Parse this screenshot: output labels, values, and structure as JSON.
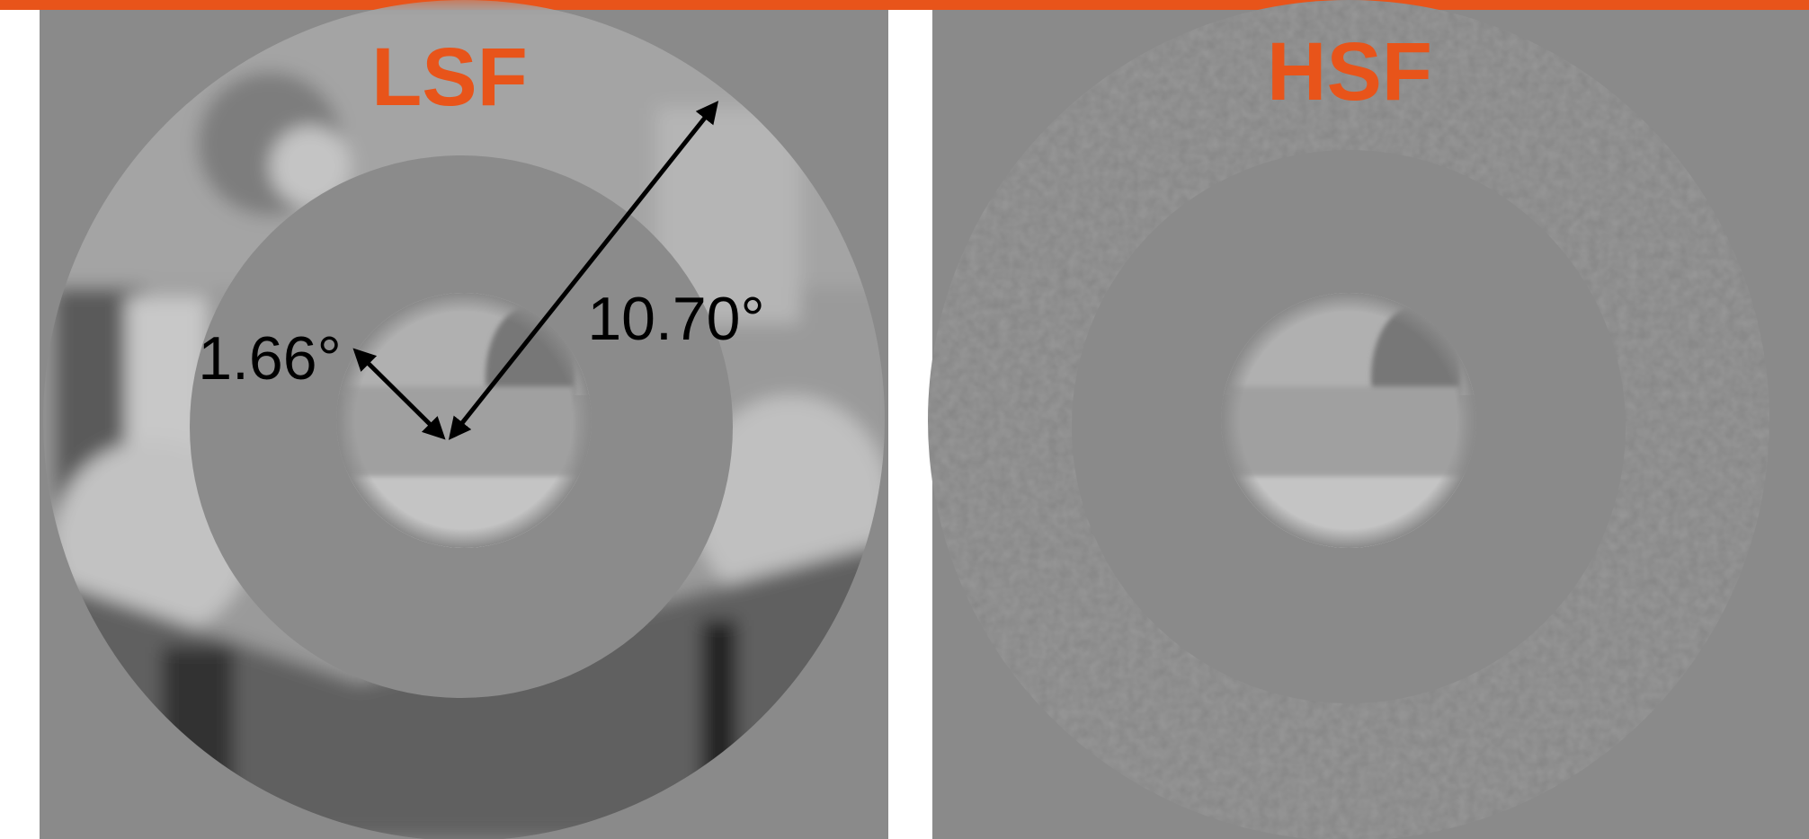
{
  "panels": [
    {
      "label": "LSF"
    },
    {
      "label": "HSF"
    }
  ],
  "annotations": {
    "inner": "1.66°",
    "outer": "10.70°"
  }
}
